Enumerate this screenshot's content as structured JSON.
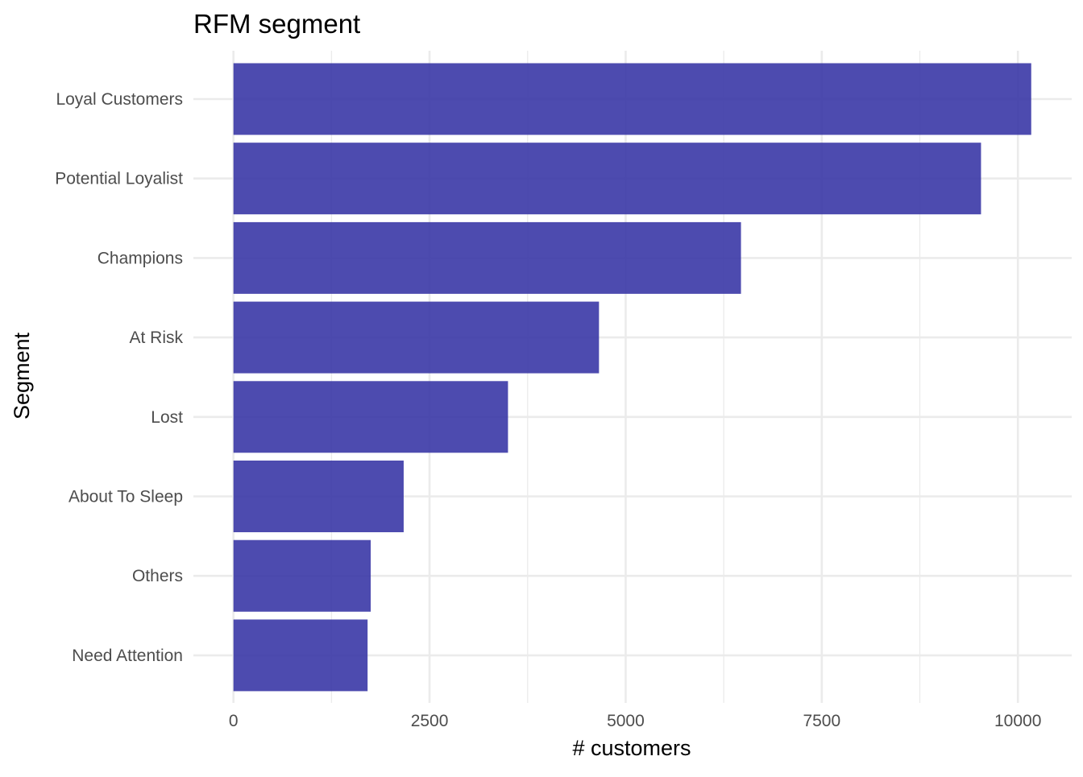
{
  "chart_data": {
    "type": "bar",
    "orientation": "horizontal",
    "title": "RFM segment",
    "xlabel": "# customers",
    "ylabel": "Segment",
    "categories": [
      "Loyal Customers",
      "Potential Loyalist",
      "Champions",
      "At Risk",
      "Lost",
      "About To Sleep",
      "Others",
      "Need Attention"
    ],
    "values": [
      10170,
      9530,
      6470,
      4660,
      3500,
      2170,
      1750,
      1710
    ],
    "xlim": [
      0,
      10500
    ],
    "x_ticks": [
      "0",
      "2500",
      "5000",
      "7500",
      "10000"
    ],
    "grid": true,
    "legend": "none",
    "bar_color": "#3a37a6"
  }
}
